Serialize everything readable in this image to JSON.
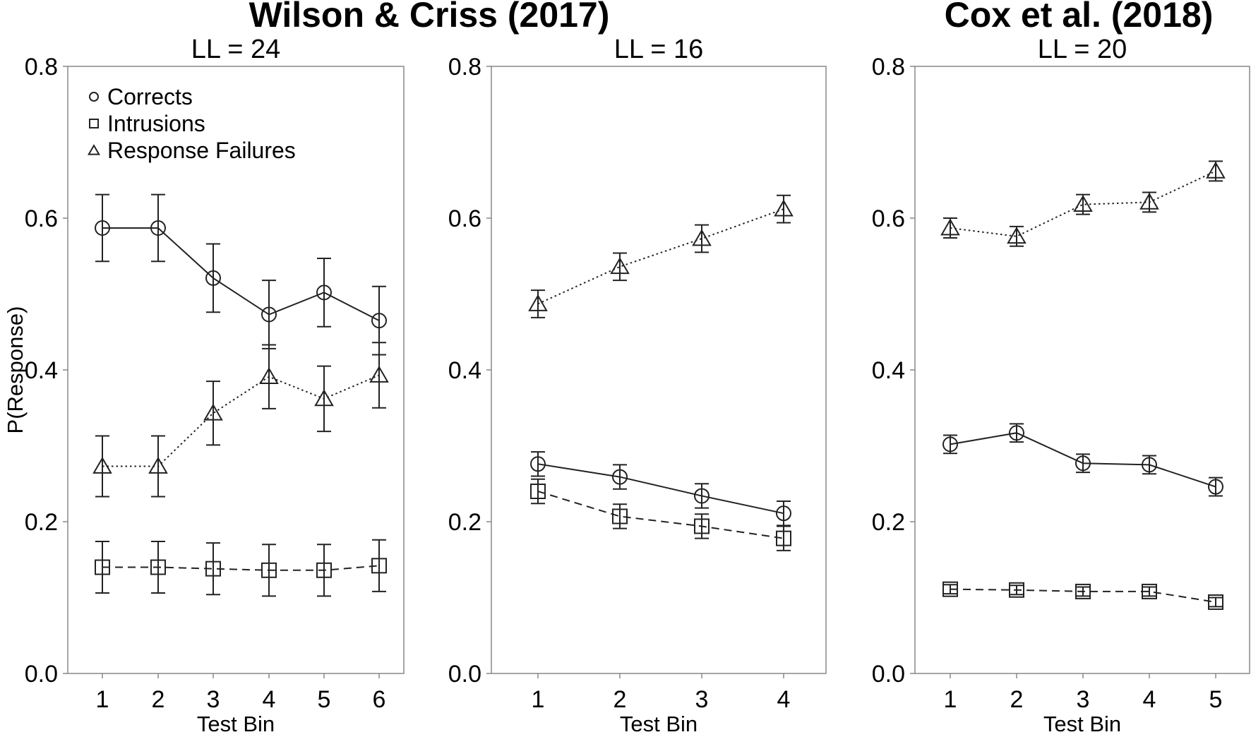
{
  "group_titles": [
    "Wilson & Criss (2017)",
    "Cox et al. (2018)"
  ],
  "legend": [
    {
      "label": "Corrects",
      "marker": "circle"
    },
    {
      "label": "Intrusions",
      "marker": "square"
    },
    {
      "label": "Response Failures",
      "marker": "triangle"
    }
  ],
  "chart_data": [
    {
      "type": "line",
      "title": "LL = 24",
      "group": "Wilson & Criss (2017)",
      "xlabel": "Test Bin",
      "ylabel": "P(Response)",
      "x": [
        1,
        2,
        3,
        4,
        5,
        6
      ],
      "ylim": [
        0,
        0.8
      ],
      "yticks": [
        "0.0",
        "0.2",
        "0.4",
        "0.6",
        "0.8"
      ],
      "grid": false,
      "legend_position": "top-left",
      "series": [
        {
          "name": "Corrects",
          "marker": "circle",
          "line_style": "solid",
          "values": [
            0.587,
            0.587,
            0.521,
            0.473,
            0.502,
            0.465
          ],
          "error": [
            0.044,
            0.044,
            0.045,
            0.045,
            0.045,
            0.045
          ]
        },
        {
          "name": "Intrusions",
          "marker": "square",
          "line_style": "dashed",
          "values": [
            0.14,
            0.14,
            0.138,
            0.136,
            0.136,
            0.142
          ],
          "error": [
            0.034,
            0.034,
            0.034,
            0.034,
            0.034,
            0.034
          ]
        },
        {
          "name": "Response Failures",
          "marker": "triangle",
          "line_style": "dotted",
          "values": [
            0.273,
            0.273,
            0.343,
            0.391,
            0.362,
            0.393
          ],
          "error": [
            0.04,
            0.04,
            0.042,
            0.042,
            0.043,
            0.043
          ]
        }
      ]
    },
    {
      "type": "line",
      "title": "LL = 16",
      "group": "Wilson & Criss (2017)",
      "xlabel": "Test Bin",
      "ylabel": "",
      "x": [
        1,
        2,
        3,
        4
      ],
      "ylim": [
        0,
        0.8
      ],
      "yticks": [
        "0.0",
        "0.2",
        "0.4",
        "0.6",
        "0.8"
      ],
      "grid": false,
      "series": [
        {
          "name": "Corrects",
          "marker": "circle",
          "line_style": "solid",
          "values": [
            0.276,
            0.259,
            0.234,
            0.211
          ],
          "error": [
            0.016,
            0.016,
            0.016,
            0.016
          ]
        },
        {
          "name": "Intrusions",
          "marker": "square",
          "line_style": "dashed",
          "values": [
            0.24,
            0.207,
            0.194,
            0.178
          ],
          "error": [
            0.016,
            0.016,
            0.016,
            0.016
          ]
        },
        {
          "name": "Response Failures",
          "marker": "triangle",
          "line_style": "dotted",
          "values": [
            0.487,
            0.536,
            0.573,
            0.612
          ],
          "error": [
            0.018,
            0.018,
            0.018,
            0.018
          ]
        }
      ]
    },
    {
      "type": "line",
      "title": "LL = 20",
      "group": "Cox et al. (2018)",
      "xlabel": "Test Bin",
      "ylabel": "",
      "x": [
        1,
        2,
        3,
        4,
        5
      ],
      "ylim": [
        0,
        0.8
      ],
      "yticks": [
        "0.0",
        "0.2",
        "0.4",
        "0.6",
        "0.8"
      ],
      "grid": false,
      "series": [
        {
          "name": "Corrects",
          "marker": "circle",
          "line_style": "solid",
          "values": [
            0.302,
            0.317,
            0.277,
            0.275,
            0.246
          ],
          "error": [
            0.012,
            0.012,
            0.012,
            0.012,
            0.012
          ]
        },
        {
          "name": "Intrusions",
          "marker": "square",
          "line_style": "dashed",
          "values": [
            0.111,
            0.11,
            0.108,
            0.108,
            0.094
          ],
          "error": [
            0.006,
            0.006,
            0.006,
            0.006,
            0.006
          ]
        },
        {
          "name": "Response Failures",
          "marker": "triangle",
          "line_style": "dotted",
          "values": [
            0.587,
            0.576,
            0.618,
            0.621,
            0.662
          ],
          "error": [
            0.013,
            0.013,
            0.013,
            0.013,
            0.013
          ]
        }
      ]
    }
  ]
}
